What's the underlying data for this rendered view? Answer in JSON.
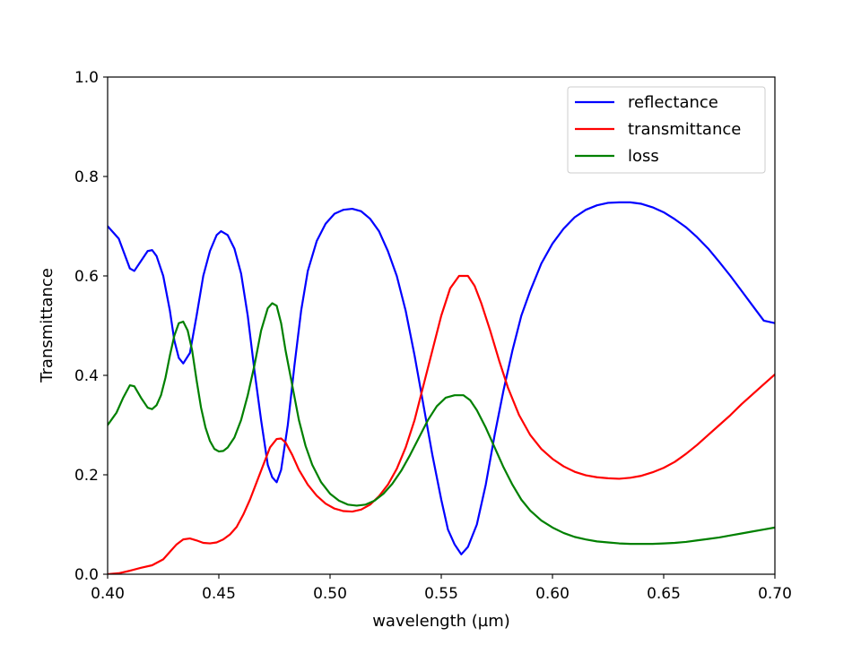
{
  "chart_data": {
    "type": "line",
    "title": "",
    "xlabel": "wavelength (µm)",
    "ylabel": "Transmittance",
    "xlim": [
      0.4,
      0.7
    ],
    "ylim": [
      0.0,
      1.0
    ],
    "xticks": [
      "0.40",
      "0.45",
      "0.50",
      "0.55",
      "0.60",
      "0.65",
      "0.70"
    ],
    "yticks": [
      "0.0",
      "0.2",
      "0.4",
      "0.6",
      "0.8",
      "1.0"
    ],
    "grid": false,
    "legend_position": "upper-right",
    "series": [
      {
        "name": "reflectance",
        "color": "#0000ff",
        "points": [
          [
            0.4,
            0.7
          ],
          [
            0.405,
            0.675
          ],
          [
            0.41,
            0.615
          ],
          [
            0.412,
            0.61
          ],
          [
            0.415,
            0.63
          ],
          [
            0.418,
            0.65
          ],
          [
            0.42,
            0.652
          ],
          [
            0.422,
            0.64
          ],
          [
            0.425,
            0.6
          ],
          [
            0.428,
            0.53
          ],
          [
            0.43,
            0.47
          ],
          [
            0.432,
            0.435
          ],
          [
            0.434,
            0.424
          ],
          [
            0.437,
            0.445
          ],
          [
            0.44,
            0.52
          ],
          [
            0.443,
            0.6
          ],
          [
            0.446,
            0.65
          ],
          [
            0.449,
            0.682
          ],
          [
            0.451,
            0.69
          ],
          [
            0.454,
            0.682
          ],
          [
            0.457,
            0.655
          ],
          [
            0.46,
            0.605
          ],
          [
            0.463,
            0.52
          ],
          [
            0.466,
            0.41
          ],
          [
            0.469,
            0.31
          ],
          [
            0.472,
            0.22
          ],
          [
            0.474,
            0.195
          ],
          [
            0.476,
            0.185
          ],
          [
            0.478,
            0.21
          ],
          [
            0.481,
            0.3
          ],
          [
            0.484,
            0.42
          ],
          [
            0.487,
            0.53
          ],
          [
            0.49,
            0.61
          ],
          [
            0.494,
            0.67
          ],
          [
            0.498,
            0.705
          ],
          [
            0.502,
            0.725
          ],
          [
            0.506,
            0.733
          ],
          [
            0.51,
            0.735
          ],
          [
            0.514,
            0.73
          ],
          [
            0.518,
            0.715
          ],
          [
            0.522,
            0.69
          ],
          [
            0.526,
            0.65
          ],
          [
            0.53,
            0.6
          ],
          [
            0.534,
            0.53
          ],
          [
            0.538,
            0.44
          ],
          [
            0.542,
            0.34
          ],
          [
            0.546,
            0.24
          ],
          [
            0.55,
            0.15
          ],
          [
            0.553,
            0.09
          ],
          [
            0.556,
            0.06
          ],
          [
            0.559,
            0.04
          ],
          [
            0.562,
            0.055
          ],
          [
            0.566,
            0.1
          ],
          [
            0.57,
            0.18
          ],
          [
            0.574,
            0.28
          ],
          [
            0.578,
            0.37
          ],
          [
            0.582,
            0.45
          ],
          [
            0.586,
            0.52
          ],
          [
            0.59,
            0.57
          ],
          [
            0.595,
            0.625
          ],
          [
            0.6,
            0.665
          ],
          [
            0.605,
            0.695
          ],
          [
            0.61,
            0.718
          ],
          [
            0.615,
            0.733
          ],
          [
            0.62,
            0.742
          ],
          [
            0.625,
            0.747
          ],
          [
            0.63,
            0.748
          ],
          [
            0.635,
            0.748
          ],
          [
            0.64,
            0.745
          ],
          [
            0.645,
            0.738
          ],
          [
            0.65,
            0.728
          ],
          [
            0.655,
            0.714
          ],
          [
            0.66,
            0.698
          ],
          [
            0.665,
            0.678
          ],
          [
            0.67,
            0.655
          ],
          [
            0.675,
            0.628
          ],
          [
            0.68,
            0.6
          ],
          [
            0.685,
            0.57
          ],
          [
            0.69,
            0.54
          ],
          [
            0.695,
            0.51
          ],
          [
            0.7,
            0.505
          ]
        ]
      },
      {
        "name": "transmittance",
        "color": "#ff0000",
        "points": [
          [
            0.4,
            0.0
          ],
          [
            0.405,
            0.002
          ],
          [
            0.41,
            0.007
          ],
          [
            0.415,
            0.013
          ],
          [
            0.42,
            0.018
          ],
          [
            0.425,
            0.03
          ],
          [
            0.428,
            0.045
          ],
          [
            0.431,
            0.06
          ],
          [
            0.434,
            0.07
          ],
          [
            0.437,
            0.072
          ],
          [
            0.44,
            0.068
          ],
          [
            0.443,
            0.063
          ],
          [
            0.446,
            0.062
          ],
          [
            0.449,
            0.064
          ],
          [
            0.452,
            0.07
          ],
          [
            0.455,
            0.08
          ],
          [
            0.458,
            0.095
          ],
          [
            0.461,
            0.12
          ],
          [
            0.464,
            0.15
          ],
          [
            0.467,
            0.185
          ],
          [
            0.47,
            0.22
          ],
          [
            0.473,
            0.255
          ],
          [
            0.476,
            0.272
          ],
          [
            0.478,
            0.273
          ],
          [
            0.48,
            0.265
          ],
          [
            0.483,
            0.24
          ],
          [
            0.486,
            0.21
          ],
          [
            0.49,
            0.18
          ],
          [
            0.494,
            0.158
          ],
          [
            0.498,
            0.142
          ],
          [
            0.502,
            0.132
          ],
          [
            0.506,
            0.127
          ],
          [
            0.51,
            0.126
          ],
          [
            0.514,
            0.13
          ],
          [
            0.518,
            0.14
          ],
          [
            0.522,
            0.157
          ],
          [
            0.526,
            0.18
          ],
          [
            0.53,
            0.212
          ],
          [
            0.534,
            0.255
          ],
          [
            0.538,
            0.31
          ],
          [
            0.542,
            0.38
          ],
          [
            0.546,
            0.45
          ],
          [
            0.55,
            0.52
          ],
          [
            0.554,
            0.575
          ],
          [
            0.558,
            0.6
          ],
          [
            0.562,
            0.6
          ],
          [
            0.565,
            0.58
          ],
          [
            0.568,
            0.545
          ],
          [
            0.572,
            0.49
          ],
          [
            0.576,
            0.43
          ],
          [
            0.58,
            0.375
          ],
          [
            0.585,
            0.32
          ],
          [
            0.59,
            0.28
          ],
          [
            0.595,
            0.252
          ],
          [
            0.6,
            0.232
          ],
          [
            0.605,
            0.217
          ],
          [
            0.61,
            0.206
          ],
          [
            0.615,
            0.199
          ],
          [
            0.62,
            0.195
          ],
          [
            0.625,
            0.193
          ],
          [
            0.63,
            0.192
          ],
          [
            0.635,
            0.194
          ],
          [
            0.64,
            0.198
          ],
          [
            0.645,
            0.205
          ],
          [
            0.65,
            0.214
          ],
          [
            0.655,
            0.226
          ],
          [
            0.66,
            0.242
          ],
          [
            0.665,
            0.26
          ],
          [
            0.67,
            0.28
          ],
          [
            0.675,
            0.3
          ],
          [
            0.68,
            0.32
          ],
          [
            0.685,
            0.342
          ],
          [
            0.69,
            0.362
          ],
          [
            0.695,
            0.382
          ],
          [
            0.7,
            0.402
          ]
        ]
      },
      {
        "name": "loss",
        "color": "#008000",
        "points": [
          [
            0.4,
            0.3
          ],
          [
            0.404,
            0.325
          ],
          [
            0.407,
            0.355
          ],
          [
            0.41,
            0.38
          ],
          [
            0.412,
            0.378
          ],
          [
            0.415,
            0.355
          ],
          [
            0.418,
            0.335
          ],
          [
            0.42,
            0.332
          ],
          [
            0.422,
            0.34
          ],
          [
            0.424,
            0.36
          ],
          [
            0.426,
            0.395
          ],
          [
            0.428,
            0.44
          ],
          [
            0.43,
            0.48
          ],
          [
            0.432,
            0.505
          ],
          [
            0.434,
            0.508
          ],
          [
            0.436,
            0.49
          ],
          [
            0.438,
            0.45
          ],
          [
            0.44,
            0.39
          ],
          [
            0.442,
            0.335
          ],
          [
            0.444,
            0.295
          ],
          [
            0.446,
            0.268
          ],
          [
            0.448,
            0.252
          ],
          [
            0.45,
            0.247
          ],
          [
            0.452,
            0.248
          ],
          [
            0.454,
            0.255
          ],
          [
            0.457,
            0.275
          ],
          [
            0.46,
            0.31
          ],
          [
            0.463,
            0.36
          ],
          [
            0.466,
            0.42
          ],
          [
            0.469,
            0.49
          ],
          [
            0.472,
            0.535
          ],
          [
            0.474,
            0.545
          ],
          [
            0.476,
            0.54
          ],
          [
            0.478,
            0.505
          ],
          [
            0.48,
            0.45
          ],
          [
            0.483,
            0.38
          ],
          [
            0.486,
            0.31
          ],
          [
            0.489,
            0.258
          ],
          [
            0.492,
            0.22
          ],
          [
            0.496,
            0.185
          ],
          [
            0.5,
            0.162
          ],
          [
            0.504,
            0.148
          ],
          [
            0.508,
            0.14
          ],
          [
            0.512,
            0.138
          ],
          [
            0.516,
            0.14
          ],
          [
            0.52,
            0.148
          ],
          [
            0.524,
            0.162
          ],
          [
            0.528,
            0.182
          ],
          [
            0.532,
            0.208
          ],
          [
            0.536,
            0.24
          ],
          [
            0.54,
            0.275
          ],
          [
            0.544,
            0.31
          ],
          [
            0.548,
            0.338
          ],
          [
            0.552,
            0.355
          ],
          [
            0.556,
            0.36
          ],
          [
            0.56,
            0.36
          ],
          [
            0.563,
            0.35
          ],
          [
            0.566,
            0.33
          ],
          [
            0.57,
            0.295
          ],
          [
            0.574,
            0.255
          ],
          [
            0.578,
            0.215
          ],
          [
            0.582,
            0.18
          ],
          [
            0.586,
            0.15
          ],
          [
            0.59,
            0.128
          ],
          [
            0.595,
            0.108
          ],
          [
            0.6,
            0.094
          ],
          [
            0.605,
            0.083
          ],
          [
            0.61,
            0.075
          ],
          [
            0.615,
            0.07
          ],
          [
            0.62,
            0.066
          ],
          [
            0.625,
            0.064
          ],
          [
            0.63,
            0.062
          ],
          [
            0.635,
            0.061
          ],
          [
            0.64,
            0.061
          ],
          [
            0.645,
            0.061
          ],
          [
            0.65,
            0.062
          ],
          [
            0.655,
            0.063
          ],
          [
            0.66,
            0.065
          ],
          [
            0.665,
            0.068
          ],
          [
            0.67,
            0.071
          ],
          [
            0.675,
            0.074
          ],
          [
            0.68,
            0.078
          ],
          [
            0.685,
            0.082
          ],
          [
            0.69,
            0.086
          ],
          [
            0.695,
            0.09
          ],
          [
            0.7,
            0.094
          ]
        ]
      }
    ]
  }
}
